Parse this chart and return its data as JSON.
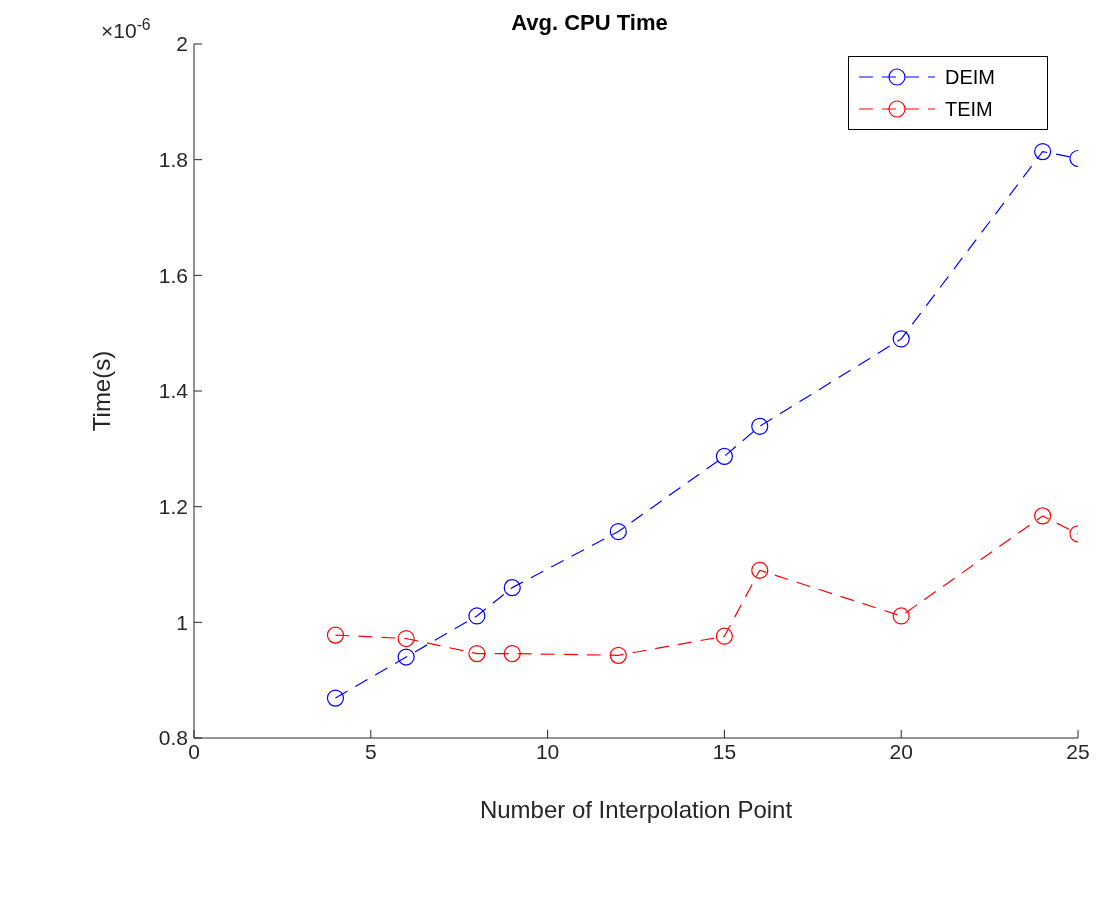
{
  "chart_data": {
    "type": "line",
    "title": "Avg. CPU Time",
    "xlabel": "Number of Interpolation Point",
    "ylabel": "Time(s)",
    "annotations": [
      "×10$^{-6}$"
    ],
    "x": [
      4,
      6,
      8,
      9,
      12,
      15,
      16,
      20,
      24,
      25
    ],
    "series": [
      {
        "name": "DEIM",
        "color": "#0000ff",
        "values": [
          0.869,
          0.94,
          1.011,
          1.06,
          1.157,
          1.287,
          1.339,
          1.49,
          1.814,
          1.802
        ]
      },
      {
        "name": "TEIM",
        "color": "#ff0000",
        "values": [
          0.978,
          0.972,
          0.946,
          0.946,
          0.943,
          0.976,
          1.09,
          1.011,
          1.184,
          1.153
        ]
      }
    ],
    "xlim": [
      0,
      25
    ],
    "xticks": [
      0,
      5,
      10,
      15,
      20,
      25
    ],
    "ylim": [
      0.8,
      2
    ],
    "yticks": [
      0.8,
      1,
      1.2,
      1.4,
      1.6,
      1.8,
      2
    ],
    "grid": false,
    "legend": "top right",
    "marker": "circle",
    "line_style": "dashed"
  }
}
